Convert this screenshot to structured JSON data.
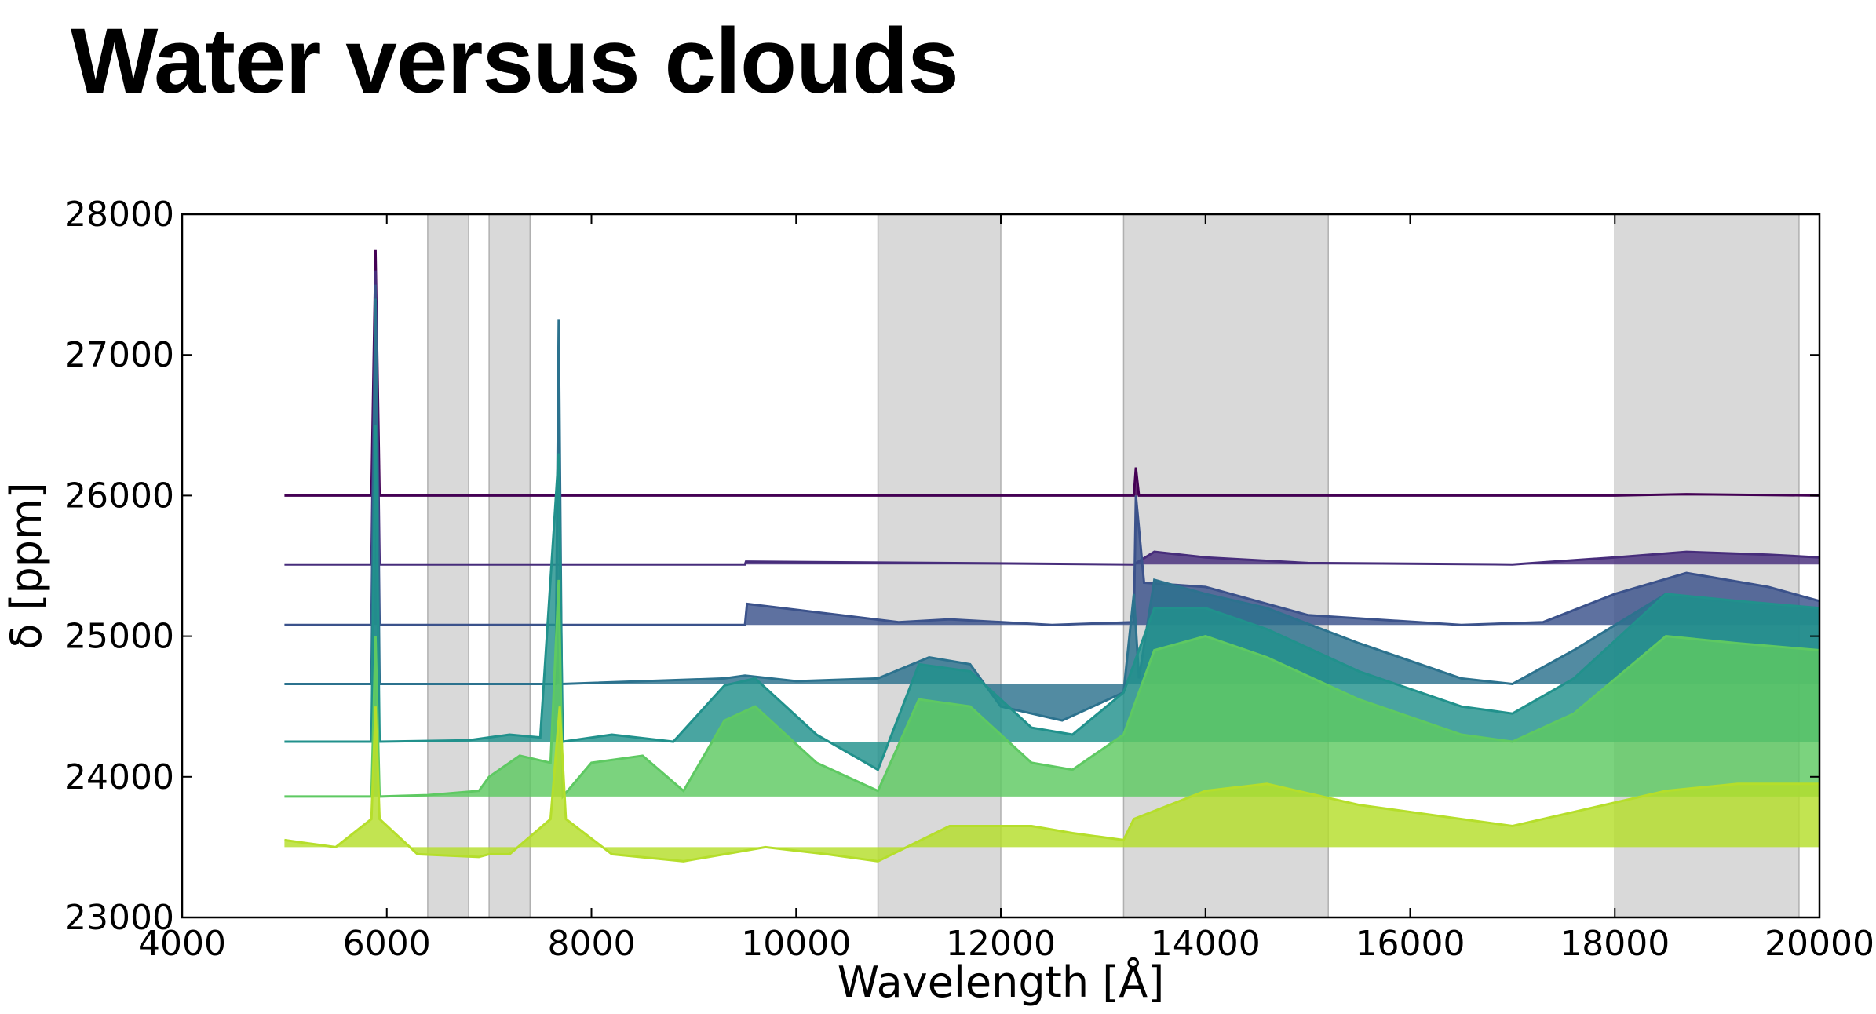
{
  "title": "Water versus clouds",
  "chart_data": {
    "type": "line",
    "title": "Water versus clouds",
    "xlabel": "Wavelength [Å]",
    "ylabel": "δ [ppm]",
    "xlim": [
      4000,
      20000
    ],
    "ylim": [
      23000,
      28000
    ],
    "xticks": [
      4000,
      6000,
      8000,
      10000,
      12000,
      14000,
      16000,
      18000,
      20000
    ],
    "yticks": [
      23000,
      24000,
      25000,
      26000,
      27000,
      28000
    ],
    "grid": false,
    "legend": "none",
    "shaded_regions": [
      [
        6400,
        6800
      ],
      [
        7000,
        7400
      ],
      [
        10800,
        12000
      ],
      [
        13200,
        15200
      ],
      [
        18000,
        19800
      ]
    ],
    "shaded_color": "#d9d9d9",
    "series": [
      {
        "color": "#440154",
        "baseline": 26000,
        "x": [
          5000,
          5850,
          5890,
          5930,
          9500,
          13300,
          13320,
          13350,
          18000,
          18700,
          20000
        ],
        "y": [
          26000,
          26000,
          27750,
          26000,
          26000,
          26000,
          26200,
          26000,
          26000,
          26010,
          26000
        ]
      },
      {
        "color": "#472d7b",
        "baseline": 25510,
        "x": [
          5000,
          5850,
          5890,
          5930,
          9500,
          9510,
          13300,
          13500,
          14000,
          15000,
          17000,
          18000,
          18700,
          19500,
          20000
        ],
        "y": [
          25510,
          25510,
          27600,
          25510,
          25510,
          25530,
          25510,
          25600,
          25560,
          25520,
          25510,
          25560,
          25600,
          25580,
          25560
        ]
      },
      {
        "color": "#3b528b",
        "baseline": 25080,
        "x": [
          5000,
          5850,
          5890,
          5930,
          9500,
          9520,
          11000,
          11500,
          12500,
          13300,
          13320,
          13400,
          14000,
          15000,
          16500,
          17300,
          18000,
          18700,
          19500,
          20000
        ],
        "y": [
          25080,
          25080,
          27500,
          25080,
          25080,
          25230,
          25100,
          25120,
          25080,
          25100,
          26000,
          25380,
          25350,
          25150,
          25080,
          25100,
          25300,
          25450,
          25350,
          25250
        ]
      },
      {
        "color": "#2c728e",
        "baseline": 24660,
        "x": [
          5000,
          5850,
          5890,
          5930,
          7650,
          7680,
          7710,
          9300,
          9500,
          10000,
          10800,
          11300,
          11700,
          12000,
          12600,
          13200,
          13300,
          13350,
          13500,
          14000,
          14600,
          15500,
          16500,
          17000,
          17600,
          18500,
          19000,
          20000
        ],
        "y": [
          24660,
          24660,
          27400,
          24660,
          24660,
          27250,
          24660,
          24700,
          24720,
          24680,
          24700,
          24850,
          24800,
          24500,
          24400,
          24600,
          25300,
          24700,
          25400,
          25300,
          25200,
          24950,
          24700,
          24660,
          24900,
          25300,
          25250,
          25200
        ]
      },
      {
        "color": "#21918c",
        "baseline": 24250,
        "x": [
          5000,
          5850,
          5890,
          5930,
          6800,
          7200,
          7500,
          7680,
          7720,
          8200,
          8800,
          9300,
          9600,
          10200,
          10800,
          11200,
          11700,
          12300,
          12700,
          13200,
          13500,
          14000,
          14600,
          15500,
          16500,
          17000,
          17600,
          18500,
          19200,
          20000
        ],
        "y": [
          24250,
          24250,
          26500,
          24250,
          24260,
          24300,
          24280,
          26300,
          24250,
          24300,
          24250,
          24650,
          24700,
          24300,
          24050,
          24800,
          24750,
          24350,
          24300,
          24600,
          25200,
          25200,
          25050,
          24750,
          24500,
          24450,
          24700,
          25300,
          25250,
          25200
        ]
      },
      {
        "color": "#5ec962",
        "baseline": 23860,
        "x": [
          5000,
          5850,
          5890,
          5930,
          6400,
          6900,
          7000,
          7300,
          7600,
          7680,
          7720,
          8000,
          8500,
          8900,
          9300,
          9600,
          10200,
          10800,
          11200,
          11700,
          12300,
          12700,
          13200,
          13500,
          14000,
          14600,
          15500,
          16500,
          17000,
          17600,
          18500,
          19200,
          20000
        ],
        "y": [
          23860,
          23860,
          25000,
          23860,
          23870,
          23900,
          24000,
          24150,
          24100,
          25400,
          23860,
          24100,
          24150,
          23900,
          24400,
          24500,
          24100,
          23900,
          24550,
          24500,
          24100,
          24050,
          24300,
          24900,
          25000,
          24850,
          24550,
          24300,
          24250,
          24450,
          25000,
          24950,
          24900
        ]
      },
      {
        "color": "#b5de2b",
        "baseline": 23500,
        "x": [
          5000,
          5500,
          5850,
          5890,
          5930,
          6300,
          6900,
          7000,
          7200,
          7600,
          7690,
          7750,
          8200,
          8900,
          9300,
          9700,
          10300,
          10800,
          11500,
          12300,
          12700,
          13200,
          13300,
          14000,
          14600,
          15500,
          16500,
          17000,
          17600,
          18500,
          19200,
          20000
        ],
        "y": [
          23550,
          23500,
          23700,
          24500,
          23700,
          23450,
          23430,
          23450,
          23450,
          23700,
          24500,
          23700,
          23450,
          23400,
          23450,
          23500,
          23450,
          23400,
          23650,
          23650,
          23600,
          23550,
          23700,
          23900,
          23950,
          23800,
          23700,
          23650,
          23750,
          23900,
          23950,
          23950
        ]
      }
    ]
  }
}
